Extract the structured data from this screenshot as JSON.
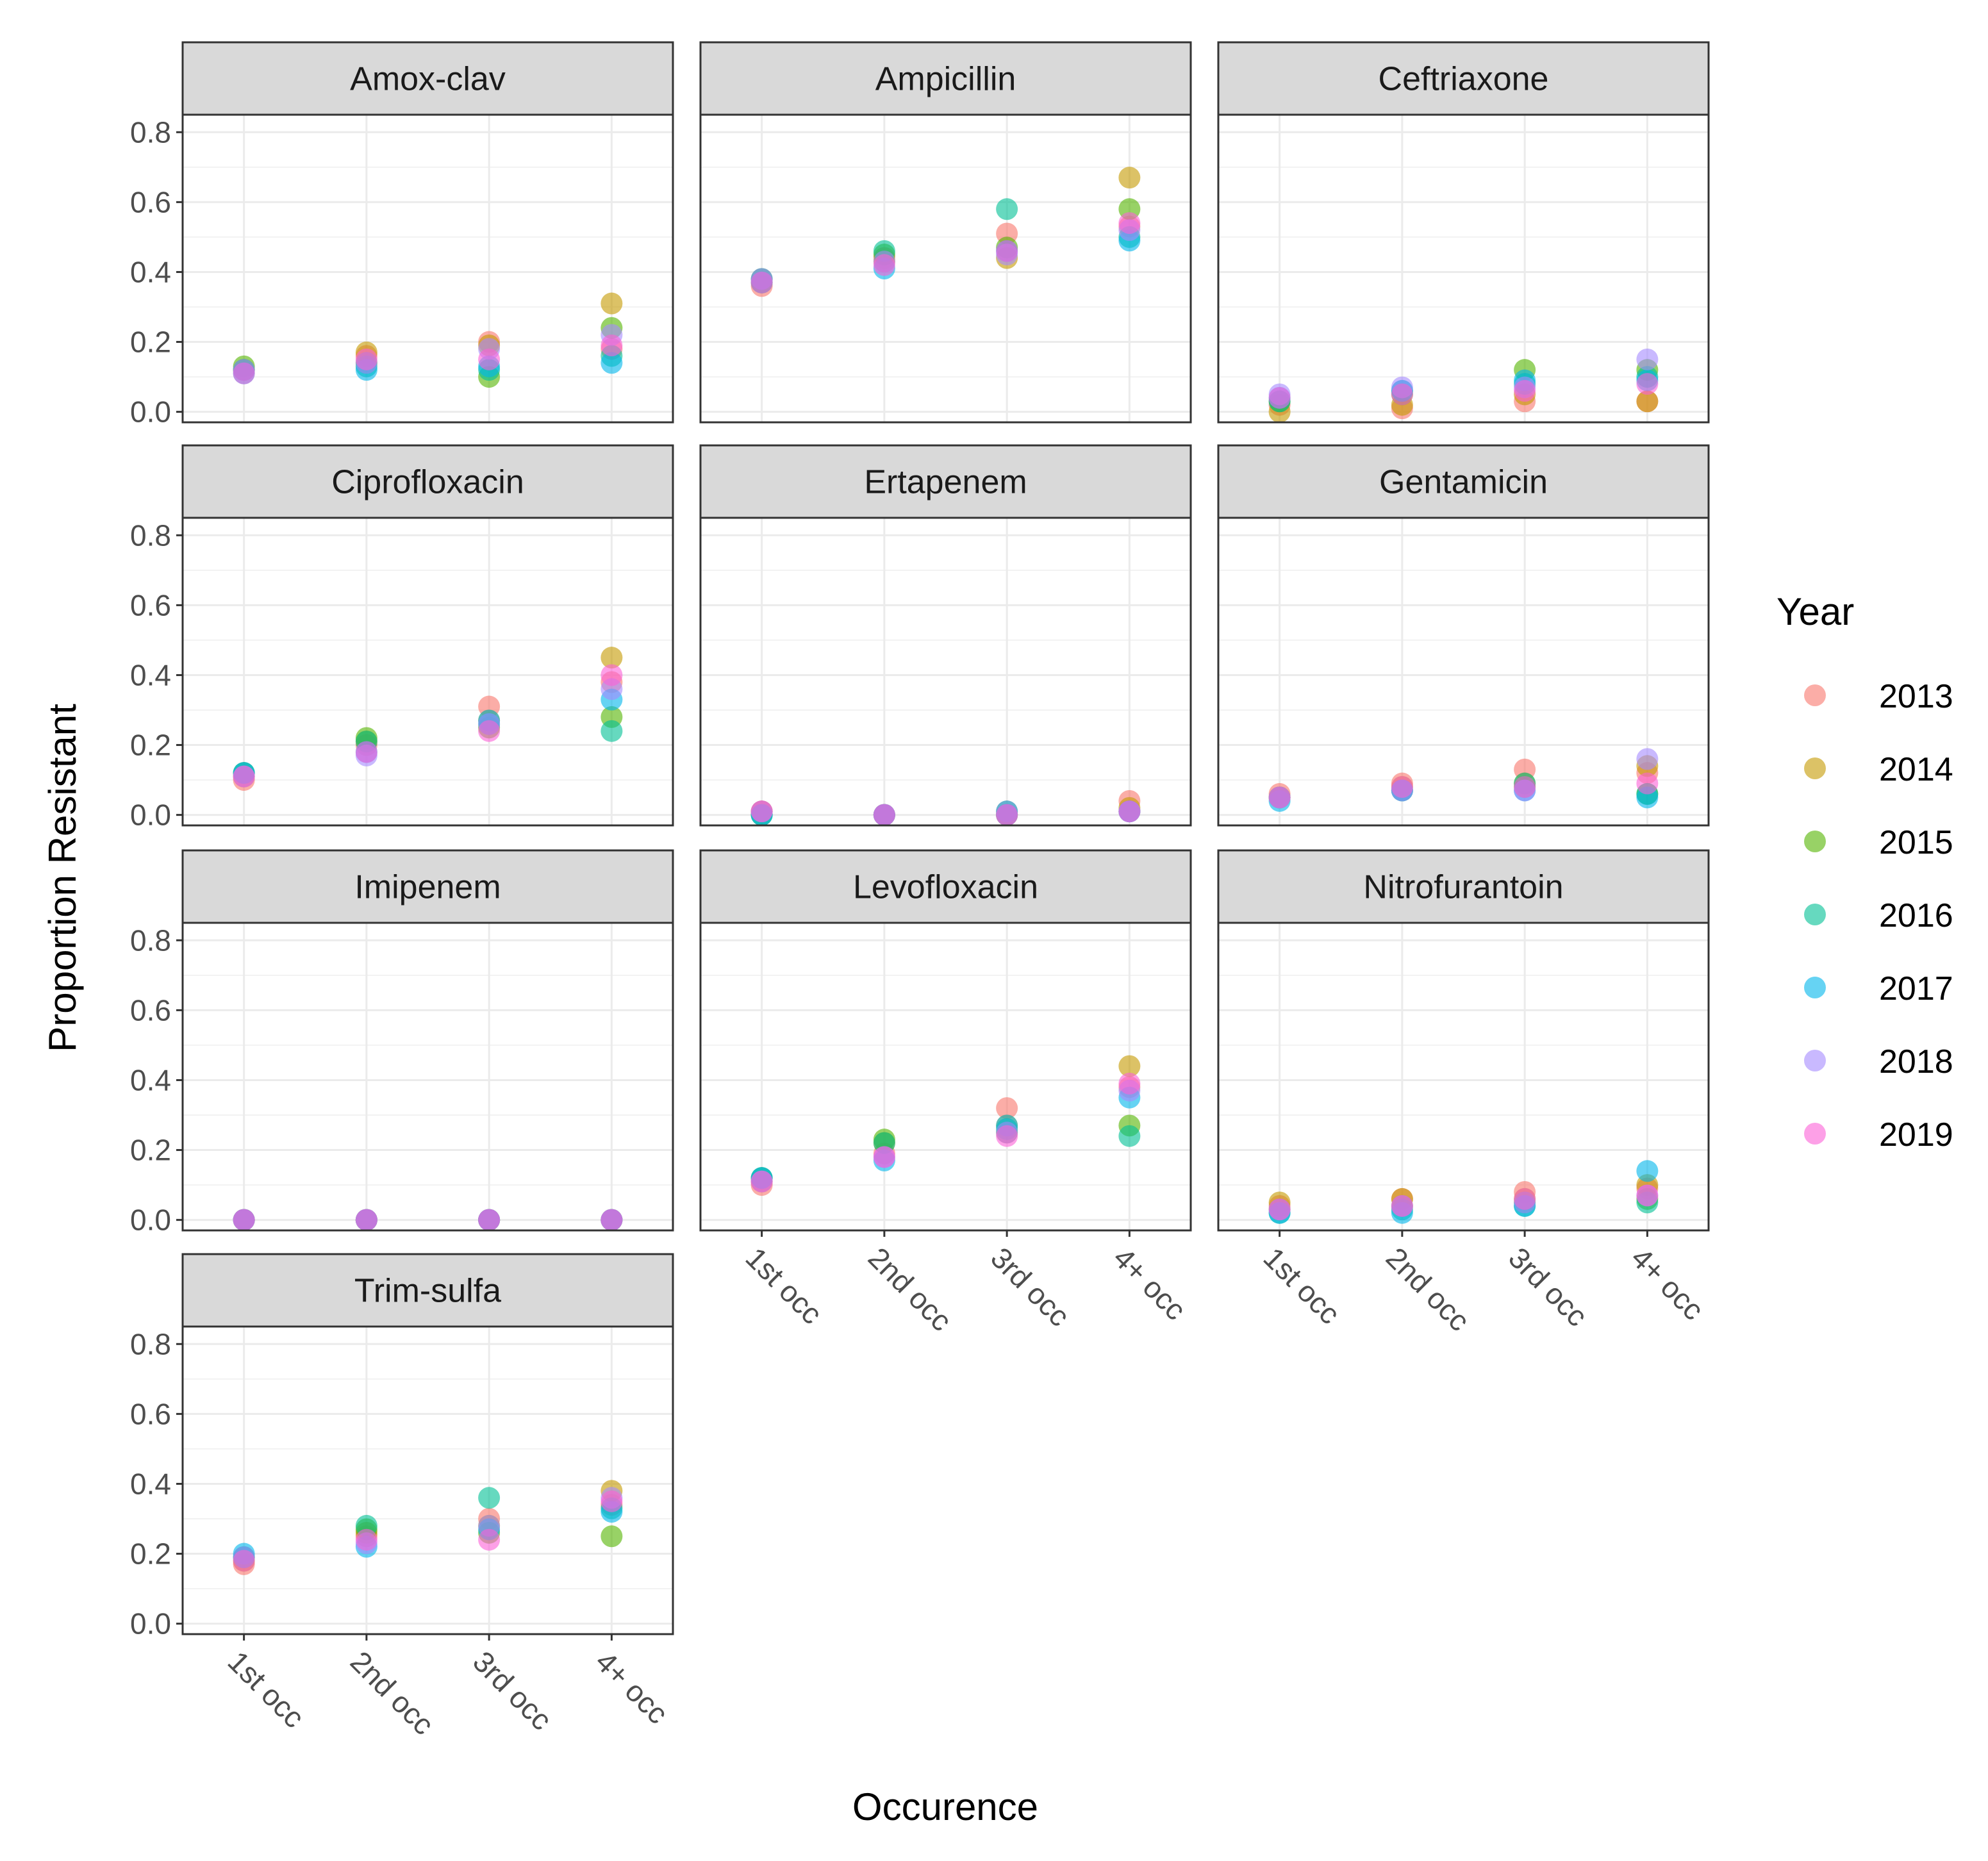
{
  "chart_data": {
    "type": "scatter",
    "xlabel": "Occurence",
    "ylabel": "Proportion Resistant",
    "categories": [
      "1st occ",
      "2nd occ",
      "3rd occ",
      "4+ occ"
    ],
    "ylim": [
      -0.03,
      0.85
    ],
    "yticks": [
      0.0,
      0.2,
      0.4,
      0.6,
      0.8
    ],
    "ytick_labels": [
      "0.0",
      "0.2",
      "0.4",
      "0.6",
      "0.8"
    ],
    "grid": true,
    "legend": {
      "title": "Year",
      "position": "right",
      "entries": [
        {
          "label": "2013",
          "color": "#F8766D"
        },
        {
          "label": "2014",
          "color": "#C49A00"
        },
        {
          "label": "2015",
          "color": "#53B400"
        },
        {
          "label": "2016",
          "color": "#00C094"
        },
        {
          "label": "2017",
          "color": "#00B6EB"
        },
        {
          "label": "2018",
          "color": "#A58AFF"
        },
        {
          "label": "2019",
          "color": "#FB61D7"
        }
      ]
    },
    "panels": [
      {
        "title": "Amox-clav",
        "series": [
          {
            "name": "2013",
            "values": [
              0.12,
              0.16,
              0.2,
              0.18
            ]
          },
          {
            "name": "2014",
            "values": [
              0.12,
              0.17,
              0.19,
              0.31
            ]
          },
          {
            "name": "2015",
            "values": [
              0.13,
              0.14,
              0.1,
              0.24
            ]
          },
          {
            "name": "2016",
            "values": [
              0.12,
              0.13,
              0.12,
              0.16
            ]
          },
          {
            "name": "2017",
            "values": [
              0.11,
              0.12,
              0.13,
              0.14
            ]
          },
          {
            "name": "2018",
            "values": [
              0.12,
              0.14,
              0.18,
              0.22
            ]
          },
          {
            "name": "2019",
            "values": [
              0.11,
              0.15,
              0.15,
              0.19
            ]
          }
        ]
      },
      {
        "title": "Ampicillin",
        "series": [
          {
            "name": "2013",
            "values": [
              0.36,
              0.44,
              0.51,
              0.53
            ]
          },
          {
            "name": "2014",
            "values": [
              0.37,
              0.43,
              0.44,
              0.67
            ]
          },
          {
            "name": "2015",
            "values": [
              0.38,
              0.45,
              0.47,
              0.58
            ]
          },
          {
            "name": "2016",
            "values": [
              0.38,
              0.46,
              0.58,
              0.5
            ]
          },
          {
            "name": "2017",
            "values": [
              0.37,
              0.41,
              0.46,
              0.49
            ]
          },
          {
            "name": "2018",
            "values": [
              0.38,
              0.43,
              0.45,
              0.52
            ]
          },
          {
            "name": "2019",
            "values": [
              0.37,
              0.42,
              0.46,
              0.54
            ]
          }
        ]
      },
      {
        "title": "Ceftriaxone",
        "series": [
          {
            "name": "2013",
            "values": [
              0.02,
              0.01,
              0.03,
              0.03
            ]
          },
          {
            "name": "2014",
            "values": [
              0.0,
              0.02,
              0.05,
              0.03
            ]
          },
          {
            "name": "2015",
            "values": [
              0.03,
              0.05,
              0.12,
              0.12
            ]
          },
          {
            "name": "2016",
            "values": [
              0.03,
              0.06,
              0.08,
              0.1
            ]
          },
          {
            "name": "2017",
            "values": [
              0.04,
              0.06,
              0.09,
              0.09
            ]
          },
          {
            "name": "2018",
            "values": [
              0.05,
              0.07,
              0.07,
              0.15
            ]
          },
          {
            "name": "2019",
            "values": [
              0.04,
              0.05,
              0.06,
              0.08
            ]
          }
        ]
      },
      {
        "title": "Ciprofloxacin",
        "series": [
          {
            "name": "2013",
            "values": [
              0.1,
              0.2,
              0.31,
              0.38
            ]
          },
          {
            "name": "2014",
            "values": [
              0.11,
              0.21,
              0.27,
              0.45
            ]
          },
          {
            "name": "2015",
            "values": [
              0.12,
              0.22,
              0.25,
              0.28
            ]
          },
          {
            "name": "2016",
            "values": [
              0.12,
              0.21,
              0.26,
              0.24
            ]
          },
          {
            "name": "2017",
            "values": [
              0.12,
              0.18,
              0.27,
              0.33
            ]
          },
          {
            "name": "2018",
            "values": [
              0.11,
              0.17,
              0.26,
              0.36
            ]
          },
          {
            "name": "2019",
            "values": [
              0.11,
              0.18,
              0.24,
              0.4
            ]
          }
        ]
      },
      {
        "title": "Ertapenem",
        "series": [
          {
            "name": "2013",
            "values": [
              0.01,
              0.0,
              0.01,
              0.04
            ]
          },
          {
            "name": "2014",
            "values": [
              0.01,
              0.0,
              0.0,
              0.02
            ]
          },
          {
            "name": "2015",
            "values": [
              0.0,
              0.0,
              0.0,
              0.01
            ]
          },
          {
            "name": "2016",
            "values": [
              0.0,
              0.0,
              0.0,
              0.01
            ]
          },
          {
            "name": "2017",
            "values": [
              0.0,
              0.0,
              0.01,
              0.01
            ]
          },
          {
            "name": "2018",
            "values": [
              0.01,
              0.0,
              0.0,
              0.01
            ]
          },
          {
            "name": "2019",
            "values": [
              0.01,
              0.0,
              0.0,
              0.01
            ]
          }
        ]
      },
      {
        "title": "Gentamicin",
        "series": [
          {
            "name": "2013",
            "values": [
              0.06,
              0.09,
              0.13,
              0.12
            ]
          },
          {
            "name": "2014",
            "values": [
              0.05,
              0.08,
              0.09,
              0.14
            ]
          },
          {
            "name": "2015",
            "values": [
              0.05,
              0.07,
              0.08,
              0.06
            ]
          },
          {
            "name": "2016",
            "values": [
              0.05,
              0.07,
              0.09,
              0.06
            ]
          },
          {
            "name": "2017",
            "values": [
              0.04,
              0.07,
              0.07,
              0.05
            ]
          },
          {
            "name": "2018",
            "values": [
              0.05,
              0.07,
              0.07,
              0.16
            ]
          },
          {
            "name": "2019",
            "values": [
              0.05,
              0.08,
              0.08,
              0.09
            ]
          }
        ]
      },
      {
        "title": "Imipenem",
        "series": [
          {
            "name": "2013",
            "values": [
              0.0,
              0.0,
              0.0,
              0.0
            ]
          },
          {
            "name": "2014",
            "values": [
              0.0,
              0.0,
              0.0,
              0.0
            ]
          },
          {
            "name": "2015",
            "values": [
              0.0,
              0.0,
              0.0,
              0.0
            ]
          },
          {
            "name": "2016",
            "values": [
              0.0,
              0.0,
              0.0,
              0.0
            ]
          },
          {
            "name": "2017",
            "values": [
              0.0,
              0.0,
              0.0,
              0.0
            ]
          },
          {
            "name": "2018",
            "values": [
              0.0,
              0.0,
              0.0,
              0.0
            ]
          },
          {
            "name": "2019",
            "values": [
              0.0,
              0.0,
              0.0,
              0.0
            ]
          }
        ]
      },
      {
        "title": "Levofloxacin",
        "series": [
          {
            "name": "2013",
            "values": [
              0.1,
              0.19,
              0.32,
              0.38
            ]
          },
          {
            "name": "2014",
            "values": [
              0.11,
              0.22,
              0.27,
              0.44
            ]
          },
          {
            "name": "2015",
            "values": [
              0.12,
              0.23,
              0.25,
              0.27
            ]
          },
          {
            "name": "2016",
            "values": [
              0.12,
              0.22,
              0.26,
              0.24
            ]
          },
          {
            "name": "2017",
            "values": [
              0.12,
              0.17,
              0.27,
              0.35
            ]
          },
          {
            "name": "2018",
            "values": [
              0.11,
              0.18,
              0.25,
              0.37
            ]
          },
          {
            "name": "2019",
            "values": [
              0.11,
              0.18,
              0.24,
              0.39
            ]
          }
        ]
      },
      {
        "title": "Nitrofurantoin",
        "series": [
          {
            "name": "2013",
            "values": [
              0.04,
              0.06,
              0.08,
              0.09
            ]
          },
          {
            "name": "2014",
            "values": [
              0.05,
              0.06,
              0.06,
              0.1
            ]
          },
          {
            "name": "2015",
            "values": [
              0.03,
              0.04,
              0.05,
              0.06
            ]
          },
          {
            "name": "2016",
            "values": [
              0.02,
              0.03,
              0.04,
              0.05
            ]
          },
          {
            "name": "2017",
            "values": [
              0.02,
              0.02,
              0.04,
              0.14
            ]
          },
          {
            "name": "2018",
            "values": [
              0.03,
              0.04,
              0.05,
              0.07
            ]
          },
          {
            "name": "2019",
            "values": [
              0.03,
              0.04,
              0.06,
              0.07
            ]
          }
        ]
      },
      {
        "title": "Trim-sulfa",
        "series": [
          {
            "name": "2013",
            "values": [
              0.17,
              0.25,
              0.3,
              0.34
            ]
          },
          {
            "name": "2014",
            "values": [
              0.18,
              0.26,
              0.28,
              0.38
            ]
          },
          {
            "name": "2015",
            "values": [
              0.19,
              0.27,
              0.26,
              0.25
            ]
          },
          {
            "name": "2016",
            "values": [
              0.19,
              0.28,
              0.36,
              0.33
            ]
          },
          {
            "name": "2017",
            "values": [
              0.2,
              0.22,
              0.27,
              0.32
            ]
          },
          {
            "name": "2018",
            "values": [
              0.19,
              0.23,
              0.28,
              0.36
            ]
          },
          {
            "name": "2019",
            "values": [
              0.18,
              0.24,
              0.24,
              0.35
            ]
          }
        ]
      }
    ]
  }
}
